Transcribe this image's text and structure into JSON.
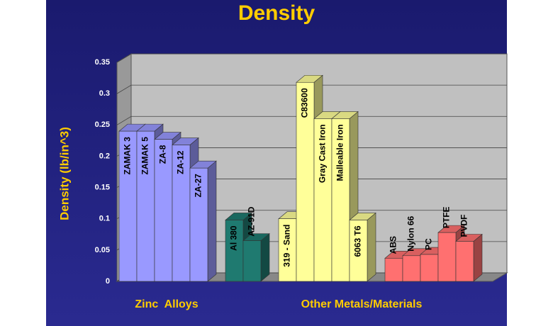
{
  "chart_data": {
    "type": "bar3d",
    "title": "Density",
    "y_label": "Density (lb/in^3)",
    "ylim": [
      0,
      0.35
    ],
    "yticks": [
      0,
      0.05,
      0.1,
      0.15,
      0.2,
      0.25,
      0.3,
      0.35
    ],
    "grid": true,
    "group_labels": [
      "Zinc  Alloys",
      "Other Metals/Materials"
    ],
    "series": [
      {
        "color": "#9999ff",
        "categories": [
          "ZAMAK 3",
          "ZAMAK 5",
          "ZA-8",
          "ZA-12",
          "ZA-27"
        ],
        "values": [
          0.24,
          0.24,
          0.227,
          0.218,
          0.181
        ]
      },
      {
        "color": "#1f7a70",
        "categories": [
          "Al 380",
          "AZ-91D"
        ],
        "values": [
          0.098,
          0.065
        ]
      },
      {
        "color": "#ffff99",
        "categories": [
          "319 - Sand",
          "C83600",
          "Gray Cast Iron",
          "Malleable Iron",
          "6063 T6"
        ],
        "values": [
          0.1,
          0.318,
          0.26,
          0.26,
          0.098
        ]
      },
      {
        "color": "#ff7070",
        "categories": [
          "ABS",
          "Nylon 66",
          "PC",
          "PTFE",
          "PVDF"
        ],
        "values": [
          0.037,
          0.041,
          0.043,
          0.078,
          0.064
        ]
      }
    ]
  }
}
